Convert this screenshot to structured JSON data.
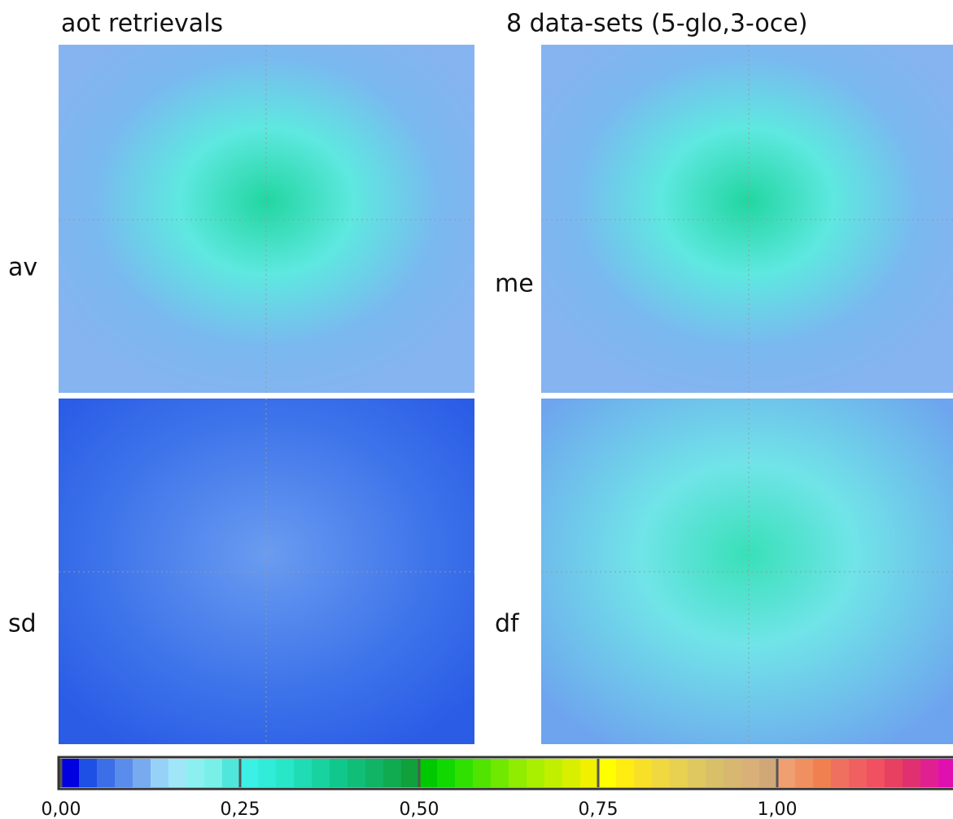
{
  "header": {
    "left_title": "aot retrievals",
    "right_title": "8 data-sets (5-glo,3-oce)"
  },
  "panels": [
    {
      "label": "av"
    },
    {
      "label": "sd"
    },
    {
      "label": "me"
    },
    {
      "label": "df"
    }
  ],
  "colorbar": {
    "lim": [
      0,
      1.25
    ],
    "ticks": [
      {
        "value": 0,
        "label": "0,00"
      },
      {
        "value": 0.25,
        "label": "0,25"
      },
      {
        "value": 0.5,
        "label": "0,50"
      },
      {
        "value": 0.75,
        "label": "0,75"
      },
      {
        "value": 1,
        "label": "1,00"
      }
    ],
    "colors": [
      "#0000e0",
      "#1e50e6",
      "#3c6ee8",
      "#5a8cec",
      "#78aaf0",
      "#96d2f8",
      "#a0e6f8",
      "#8cf0f0",
      "#78f0e8",
      "#50e6dc",
      "#3cf0e6",
      "#30ecd8",
      "#28e6c8",
      "#20dcb4",
      "#18d2a0",
      "#10c88c",
      "#10be78",
      "#10b464",
      "#10aa50",
      "#10a03c",
      "#00c800",
      "#10d800",
      "#30e000",
      "#50e400",
      "#70e800",
      "#90ec00",
      "#a8f000",
      "#c0f000",
      "#d8f000",
      "#f0f000",
      "#ffff00",
      "#ffec10",
      "#f8e028",
      "#f0d840",
      "#e8d050",
      "#e0c860",
      "#d8c068",
      "#d8b870",
      "#d8b078",
      "#d0a878",
      "#f0a070",
      "#f09060",
      "#f08050",
      "#f07060",
      "#f06060",
      "#f05060",
      "#e84060",
      "#e03070",
      "#e02090",
      "#e010b0"
    ]
  }
}
